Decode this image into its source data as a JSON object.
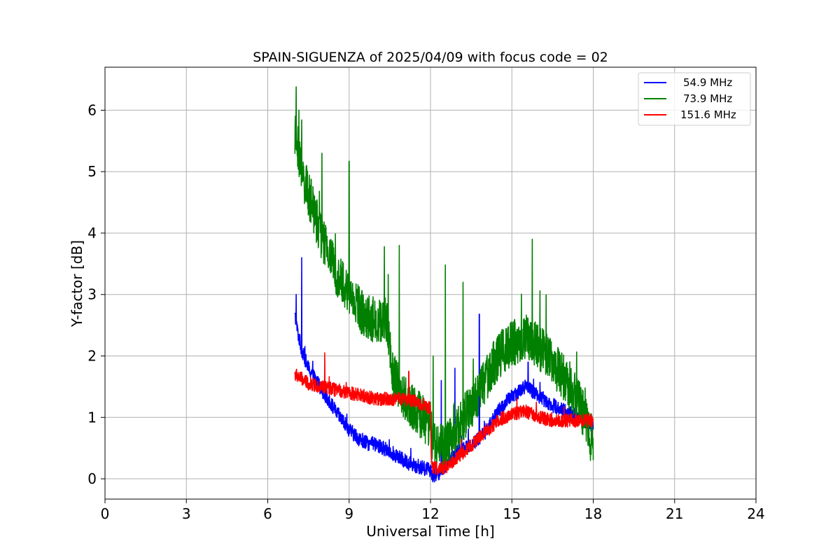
{
  "chart_data": {
    "type": "line",
    "title": "SPAIN-SIGUENZA of 2025/04/09 with focus code = 02",
    "xlabel": "Universal Time [h]",
    "ylabel": "Y-factor [dB]",
    "xlim": [
      0,
      24
    ],
    "ylim": [
      -0.33,
      6.7
    ],
    "xticks": [
      0,
      3,
      6,
      9,
      12,
      15,
      18,
      21,
      24
    ],
    "yticks": [
      0,
      1,
      2,
      3,
      4,
      5,
      6
    ],
    "grid": true,
    "legend_position": "top-right",
    "series": [
      {
        "name": "54.9 MHz",
        "color": "#0000ff",
        "noise": 0.12,
        "x": [
          7.0,
          7.1,
          7.25,
          7.5,
          8.0,
          8.5,
          9.0,
          9.5,
          10.0,
          10.5,
          11.0,
          11.5,
          12.0,
          12.1,
          12.3,
          12.6,
          13.0,
          13.5,
          14.0,
          14.5,
          15.0,
          15.5,
          16.0,
          16.5,
          17.0,
          17.5,
          18.0
        ],
        "y": [
          2.65,
          2.4,
          2.1,
          1.8,
          1.45,
          1.1,
          0.8,
          0.6,
          0.55,
          0.45,
          0.3,
          0.2,
          0.15,
          0.05,
          0.1,
          0.25,
          0.45,
          0.55,
          0.75,
          1.1,
          1.35,
          1.5,
          1.35,
          1.2,
          1.1,
          1.0,
          0.85
        ],
        "spikes": [
          [
            7.25,
            3.6
          ],
          [
            7.05,
            3.0
          ],
          [
            12.4,
            1.6
          ],
          [
            12.9,
            1.8
          ],
          [
            13.8,
            2.68
          ],
          [
            15.6,
            1.9
          ]
        ]
      },
      {
        "name": "73.9 MHz",
        "color": "#008000",
        "noise": 0.38,
        "x": [
          7.0,
          7.1,
          7.3,
          7.6,
          8.0,
          8.5,
          9.0,
          9.5,
          10.0,
          10.4,
          10.6,
          11.0,
          11.5,
          12.0,
          12.1,
          12.5,
          13.0,
          13.5,
          14.0,
          14.5,
          15.0,
          15.5,
          16.0,
          16.5,
          17.0,
          17.5,
          18.0
        ],
        "y": [
          5.6,
          5.4,
          4.9,
          4.5,
          3.9,
          3.4,
          3.0,
          2.7,
          2.55,
          2.6,
          1.7,
          1.35,
          1.1,
          0.85,
          0.6,
          0.5,
          0.8,
          1.2,
          1.6,
          2.0,
          2.2,
          2.3,
          2.15,
          1.9,
          1.6,
          1.2,
          0.6
        ],
        "spikes": [
          [
            7.05,
            6.38
          ],
          [
            7.15,
            6.0
          ],
          [
            8.0,
            5.3
          ],
          [
            9.0,
            5.17
          ],
          [
            10.3,
            3.78
          ],
          [
            10.85,
            3.8
          ],
          [
            12.1,
            2.0
          ],
          [
            12.55,
            3.48
          ],
          [
            13.2,
            3.2
          ],
          [
            15.75,
            3.9
          ],
          [
            17.9,
            0.3
          ]
        ]
      },
      {
        "name": "151.6 MHz",
        "color": "#ff0000",
        "noise": 0.11,
        "x": [
          7.0,
          7.5,
          8.0,
          8.5,
          9.0,
          9.5,
          10.0,
          10.5,
          11.0,
          11.5,
          12.0,
          12.05,
          12.3,
          12.6,
          13.0,
          13.5,
          14.0,
          14.5,
          15.0,
          15.5,
          16.0,
          16.5,
          17.0,
          17.5,
          18.0
        ],
        "y": [
          1.7,
          1.55,
          1.5,
          1.45,
          1.4,
          1.35,
          1.3,
          1.3,
          1.3,
          1.25,
          1.15,
          0.2,
          0.15,
          0.2,
          0.35,
          0.55,
          0.75,
          0.95,
          1.05,
          1.1,
          1.0,
          0.95,
          0.95,
          0.95,
          0.95
        ],
        "spikes": [
          [
            8.1,
            2.05
          ],
          [
            11.2,
            1.75
          ]
        ]
      }
    ]
  }
}
